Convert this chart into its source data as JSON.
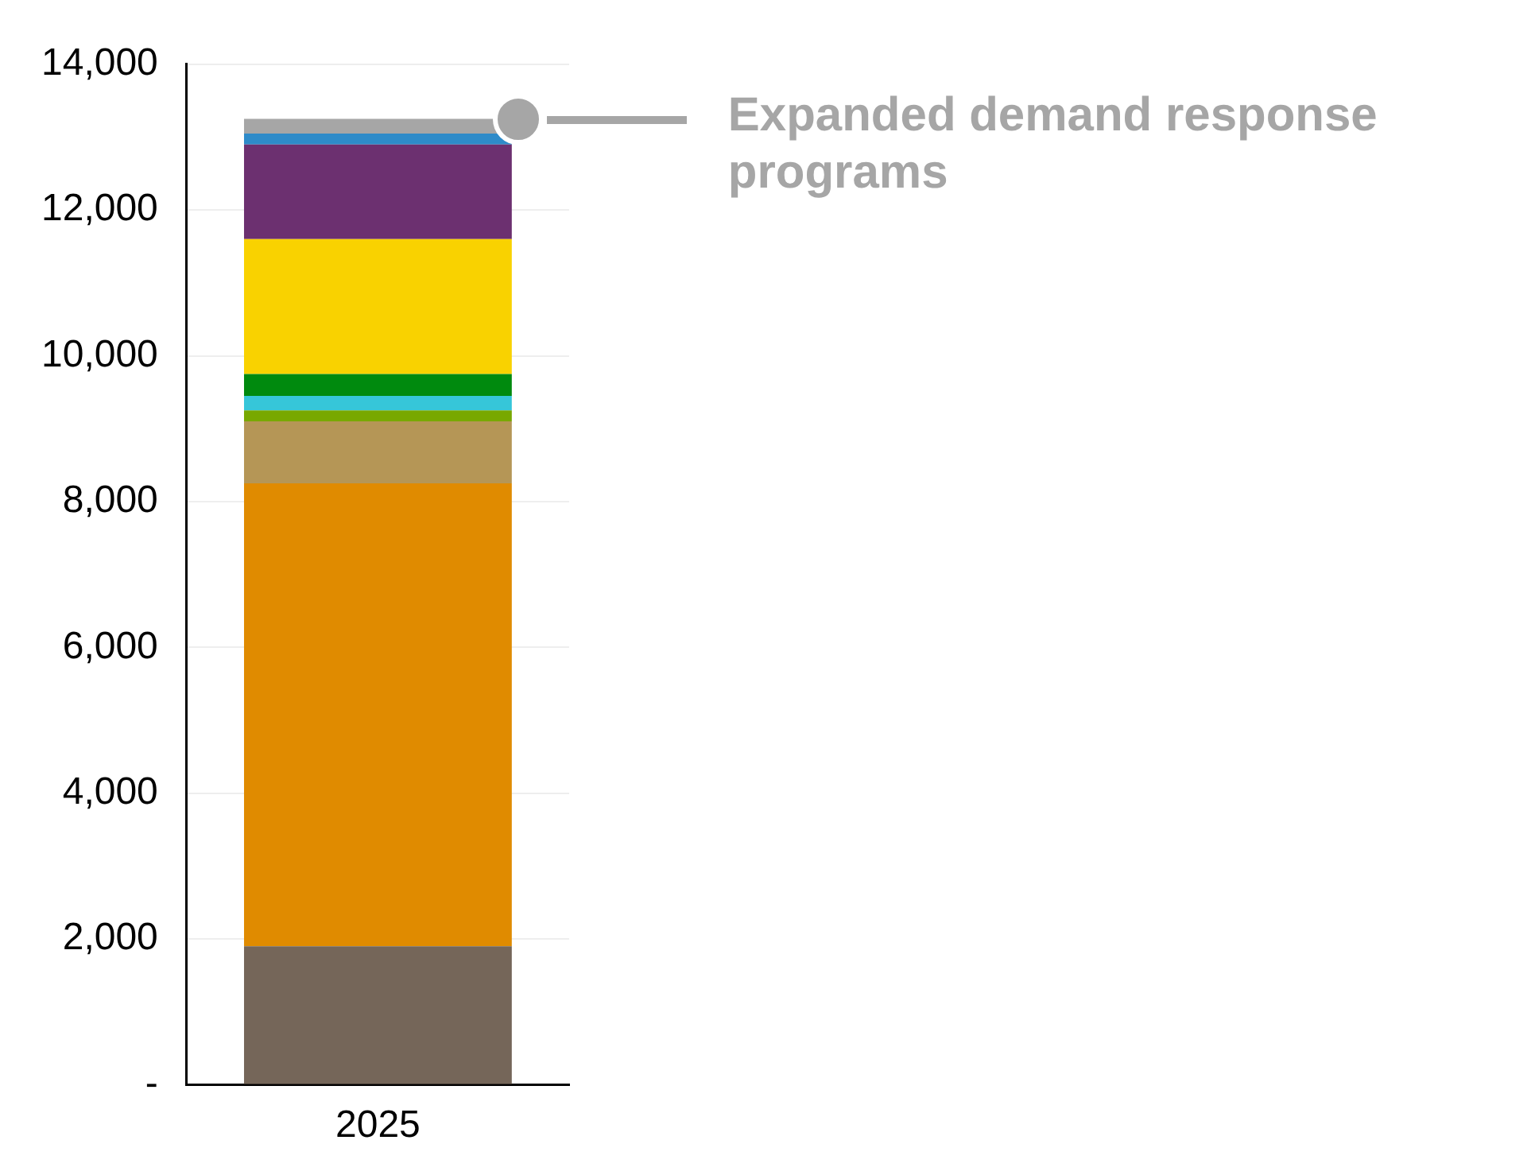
{
  "chart_data": {
    "type": "bar",
    "stacked": true,
    "categories": [
      "2025"
    ],
    "series": [
      {
        "color": "#756659",
        "values": [
          1900
        ]
      },
      {
        "color": "#e08b00",
        "values": [
          6350
        ]
      },
      {
        "color": "#b59656",
        "values": [
          850
        ]
      },
      {
        "color": "#78a800",
        "values": [
          150
        ]
      },
      {
        "color": "#36c6d9",
        "values": [
          200
        ]
      },
      {
        "color": "#008a0e",
        "values": [
          300
        ]
      },
      {
        "color": "#f9d200",
        "values": [
          1850
        ]
      },
      {
        "color": "#6c3070",
        "values": [
          1300
        ]
      },
      {
        "color": "#2e8bc9",
        "values": [
          150
        ]
      },
      {
        "name": "Expanded demand response programs",
        "color": "#a6a6a6",
        "values": [
          200
        ]
      }
    ],
    "ylim": [
      0,
      14000
    ],
    "yticks": [
      {
        "value": 0,
        "label": "-"
      },
      {
        "value": 2000,
        "label": "2,000"
      },
      {
        "value": 4000,
        "label": "4,000"
      },
      {
        "value": 6000,
        "label": "6,000"
      },
      {
        "value": 8000,
        "label": "8,000"
      },
      {
        "value": 10000,
        "label": "10,000"
      },
      {
        "value": 12000,
        "label": "12,000"
      },
      {
        "value": 14000,
        "label": "14,000"
      }
    ],
    "grid": "y",
    "legend": "right"
  }
}
